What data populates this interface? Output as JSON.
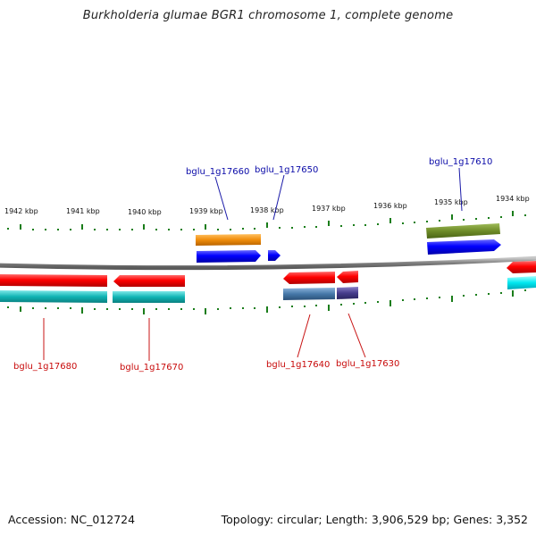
{
  "title": "Burkholderia glumae BGR1 chromosome 1, complete genome",
  "footer": {
    "accession": "Accession: NC_012724",
    "topology": "Topology: circular; Length: 3,906,529 bp; Genes: 3,352"
  },
  "scale_labels": [
    "1942 kbp",
    "1941 kbp",
    "1940 kbp",
    "1939 kbp",
    "1938 kbp",
    "1937 kbp",
    "1936 kbp",
    "1935 kbp",
    "1934 kbp"
  ],
  "gene_labels": {
    "top": [
      "bglu_1g17660",
      "bglu_1g17650",
      "bglu_1g17610"
    ],
    "bottom": [
      "bglu_1g17680",
      "bglu_1g17670",
      "bglu_1g17640",
      "bglu_1g17630"
    ]
  },
  "colors": {
    "forward_cds": "#0000ff",
    "reverse_cds": "#ff0000",
    "forward_class_orange": "#f08c0a",
    "forward_class_olive": "#6e8c28",
    "reverse_class_cyan": "#10b4b4",
    "reverse_class_steel": "#4678a8",
    "reverse_class_purple": "#463c8c",
    "backbone": "#888888",
    "tick": "#1a7d1a"
  }
}
